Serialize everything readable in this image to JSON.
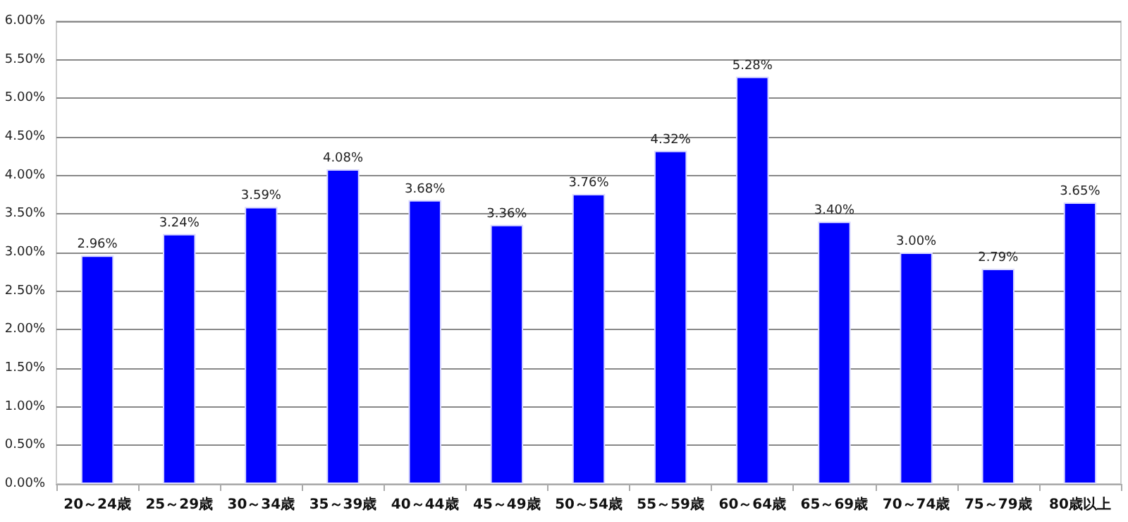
{
  "chart_data": {
    "type": "bar",
    "categories": [
      "20～24歳",
      "25～29歳",
      "30～34歳",
      "35～39歳",
      "40～44歳",
      "45～49歳",
      "50～54歳",
      "55～59歳",
      "60～64歳",
      "65～69歳",
      "70～74歳",
      "75～79歳",
      "80歳以上"
    ],
    "values": [
      2.96,
      3.24,
      3.59,
      4.08,
      3.68,
      3.36,
      3.76,
      4.32,
      5.28,
      3.4,
      3.0,
      2.79,
      3.65
    ],
    "value_labels": [
      "2.96%",
      "3.24%",
      "3.59%",
      "4.08%",
      "3.68%",
      "3.36%",
      "3.76%",
      "4.32%",
      "5.28%",
      "3.40%",
      "3.00%",
      "2.79%",
      "3.65%"
    ],
    "color": "#0000ff",
    "ylim": [
      0,
      6
    ],
    "yticks": [
      {
        "value": 0,
        "label": "0.00%"
      },
      {
        "value": 0.5,
        "label": "0.50%"
      },
      {
        "value": 1,
        "label": "1.00%"
      },
      {
        "value": 1.5,
        "label": "1.50%"
      },
      {
        "value": 2,
        "label": "2.00%"
      },
      {
        "value": 2.5,
        "label": "2.50%"
      },
      {
        "value": 3,
        "label": "3.00%"
      },
      {
        "value": 3.5,
        "label": "3.50%"
      },
      {
        "value": 4,
        "label": "4.00%"
      },
      {
        "value": 4.5,
        "label": "4.50%"
      },
      {
        "value": 5,
        "label": "5.00%"
      },
      {
        "value": 5.5,
        "label": "5.50%"
      },
      {
        "value": 6,
        "label": "6.00%"
      }
    ],
    "grid": "y"
  }
}
